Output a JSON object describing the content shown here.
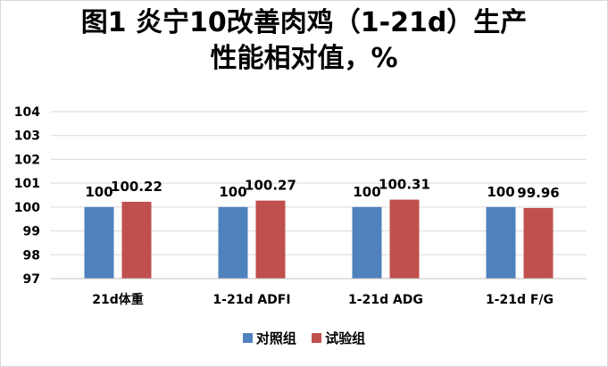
{
  "chart_data": {
    "type": "bar",
    "title_lines": [
      "图1 炎宁10改善肉鸡（1-21d）生产",
      "性能相对值，%"
    ],
    "categories": [
      "21d体重",
      "1-21d ADFI",
      "1-21d ADG",
      "1-21d F/G"
    ],
    "series": [
      {
        "name": "对照组",
        "color": "#4F81BD",
        "values": [
          100,
          100,
          100,
          100
        ],
        "labels": [
          "100",
          "100",
          "100",
          "100"
        ]
      },
      {
        "name": "试验组",
        "color": "#C0504D",
        "values": [
          100.22,
          100.27,
          100.31,
          99.96
        ],
        "labels": [
          "100.22",
          "100.27",
          "100.31",
          "99.96"
        ]
      }
    ],
    "ylim": [
      97,
      104
    ],
    "yticks": [
      "104",
      "103",
      "102",
      "101",
      "100",
      "99",
      "98",
      "97"
    ],
    "grid": true,
    "legend_position": "bottom"
  }
}
